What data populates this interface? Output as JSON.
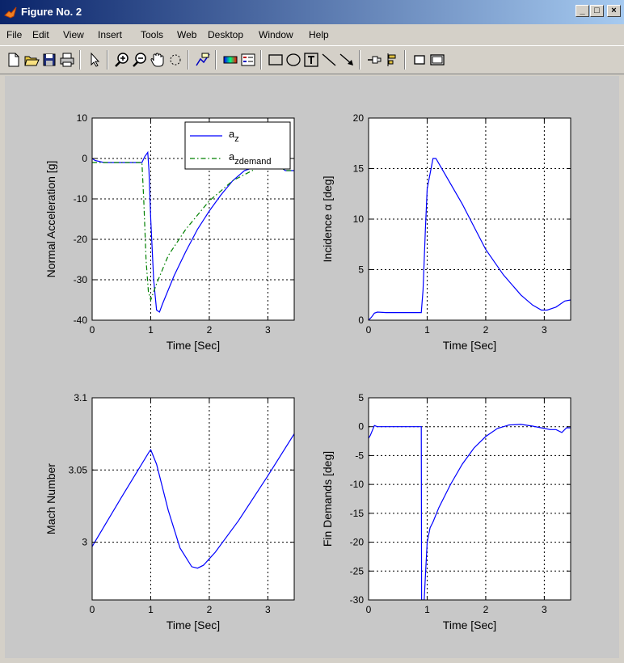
{
  "window": {
    "title": "Figure No. 2",
    "min_label": "_",
    "max_label": "□",
    "close_label": "×",
    "accent": "#0a246a"
  },
  "menu": {
    "items": [
      "File",
      "Edit",
      "View",
      "Insert",
      "Tools",
      "Web",
      "Desktop",
      "Window",
      "Help"
    ]
  },
  "toolbar": {
    "tools": [
      "new-file-icon",
      "open-folder-icon",
      "save-icon",
      "print-icon",
      "select-arrow-icon",
      "zoom-in-icon",
      "zoom-out-icon",
      "pan-hand-icon",
      "rotate-icon",
      "data-cursor-icon",
      "colorbar-icon",
      "legend-icon",
      "rectangle-icon",
      "ellipse-icon",
      "text-box-icon",
      "line-icon",
      "arrow-icon",
      "pin-icon",
      "align-icon",
      "property-icon",
      "plot-browser-icon"
    ]
  },
  "chart_data": [
    {
      "type": "line",
      "xlabel": "Time [Sec]",
      "ylabel": "Normal Acceleration [g]",
      "xlim": [
        0,
        3.45
      ],
      "ylim": [
        -40,
        10
      ],
      "xticks": [
        0,
        1,
        2,
        3
      ],
      "yticks": [
        -40,
        -30,
        -20,
        -10,
        0,
        10
      ],
      "grid": true,
      "legend": "top-right",
      "series": [
        {
          "name": "a",
          "name_sub": "z",
          "color": "#0000ff",
          "style": "solid",
          "x": [
            0,
            0.05,
            0.2,
            0.5,
            0.85,
            0.9,
            0.95,
            0.97,
            1.0,
            1.05,
            1.1,
            1.15,
            1.2,
            1.4,
            1.6,
            1.8,
            2.0,
            2.2,
            2.4,
            2.6,
            2.8,
            3.0,
            3.2,
            3.3,
            3.45
          ],
          "y": [
            0,
            -0.5,
            -1,
            -1,
            -1,
            0.5,
            1.5,
            -3,
            -15,
            -30,
            -37.5,
            -38,
            -36,
            -29,
            -23,
            -17.5,
            -13,
            -9,
            -5.5,
            -3,
            -2,
            -2,
            -2,
            -3,
            -3
          ]
        },
        {
          "name": "a",
          "name_sub": "zdemand",
          "color": "#008000",
          "style": "dashdot",
          "x": [
            0,
            0.5,
            0.85,
            0.88,
            0.92,
            0.96,
            1.0,
            1.1,
            1.3,
            1.6,
            2.0,
            2.4,
            2.8,
            3.0,
            3.2,
            3.3,
            3.45
          ],
          "y": [
            -1,
            -1,
            -1,
            -10,
            -25,
            -33,
            -35,
            -31,
            -24,
            -17.5,
            -10.5,
            -5.5,
            -2.5,
            -2,
            -2,
            -3,
            -3
          ]
        }
      ]
    },
    {
      "type": "line",
      "xlabel": "Time [Sec]",
      "ylabel": "Incidence α [deg]",
      "xlim": [
        0,
        3.45
      ],
      "ylim": [
        0,
        20
      ],
      "xticks": [
        0,
        1,
        2,
        3
      ],
      "yticks": [
        0,
        5,
        10,
        15,
        20
      ],
      "grid": true,
      "series": [
        {
          "color": "#0000ff",
          "style": "solid",
          "x": [
            0,
            0.05,
            0.1,
            0.15,
            0.3,
            0.5,
            0.9,
            0.93,
            0.97,
            1.0,
            1.05,
            1.1,
            1.15,
            1.3,
            1.6,
            2.0,
            2.3,
            2.6,
            2.8,
            2.95,
            3.05,
            3.2,
            3.35,
            3.45
          ],
          "y": [
            0,
            0.3,
            0.7,
            0.8,
            0.75,
            0.75,
            0.75,
            3,
            9,
            13,
            14.5,
            16,
            16,
            14.5,
            11.5,
            7,
            4.5,
            2.5,
            1.5,
            1,
            1,
            1.3,
            1.9,
            2
          ]
        }
      ]
    },
    {
      "type": "line",
      "xlabel": "Time [Sec]",
      "ylabel": "Mach Number",
      "xlim": [
        0,
        3.45
      ],
      "ylim": [
        2.96,
        3.1
      ],
      "xticks": [
        0,
        1,
        2,
        3
      ],
      "yticks": [
        3,
        3.05,
        3.1
      ],
      "grid": true,
      "series": [
        {
          "color": "#0000ff",
          "style": "solid",
          "x": [
            0,
            0.5,
            0.98,
            1.0,
            1.1,
            1.3,
            1.5,
            1.7,
            1.8,
            1.9,
            2.1,
            2.5,
            3.0,
            3.45
          ],
          "y": [
            2.997,
            3.031,
            3.063,
            3.064,
            3.054,
            3.022,
            2.996,
            2.983,
            2.982,
            2.984,
            2.993,
            3.015,
            3.046,
            3.075
          ]
        }
      ]
    },
    {
      "type": "line",
      "xlabel": "Time [Sec]",
      "ylabel": "Fin Demands [deg]",
      "xlim": [
        0,
        3.45
      ],
      "ylim": [
        -30,
        5
      ],
      "xticks": [
        0,
        1,
        2,
        3
      ],
      "yticks": [
        -30,
        -25,
        -20,
        -15,
        -10,
        -5,
        0,
        5
      ],
      "grid": true,
      "series": [
        {
          "color": "#0000ff",
          "style": "solid",
          "x": [
            0,
            0.03,
            0.07,
            0.1,
            0.15,
            0.3,
            0.6,
            0.9,
            0.905,
            0.93,
            0.95,
            0.98,
            1.0,
            1.05,
            1.1,
            1.2,
            1.4,
            1.6,
            1.8,
            2.0,
            2.2,
            2.4,
            2.6,
            2.8,
            3.0,
            3.1,
            3.2,
            3.3,
            3.38,
            3.45
          ],
          "y": [
            -2,
            -1.5,
            -0.5,
            0.2,
            0,
            0,
            0,
            0,
            -30,
            -30,
            -30,
            -24,
            -20,
            -17.5,
            -16.5,
            -14,
            -10,
            -6.5,
            -3.7,
            -1.7,
            -0.3,
            0.3,
            0.4,
            0.1,
            -0.3,
            -0.5,
            -0.5,
            -1,
            -0.2,
            -0.2
          ]
        }
      ]
    }
  ]
}
